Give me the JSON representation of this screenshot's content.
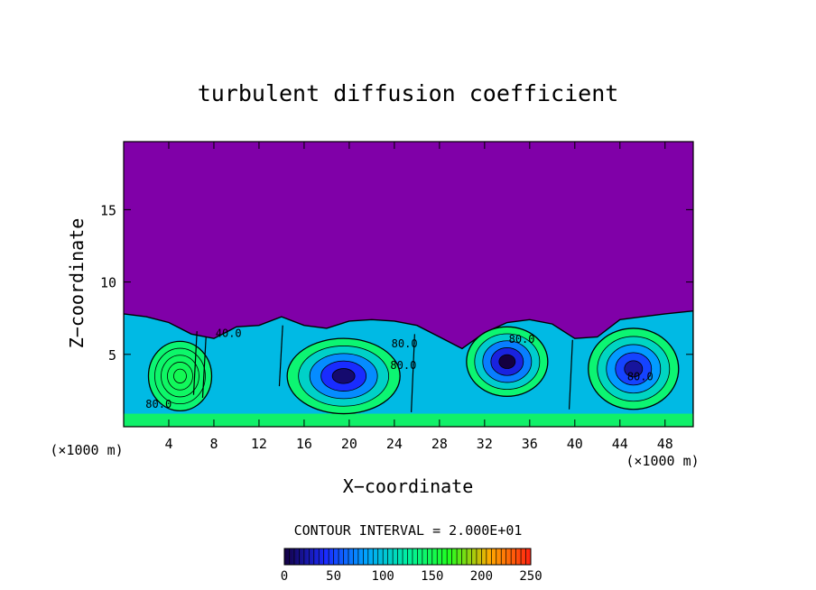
{
  "chart_data": {
    "type": "heatmap",
    "title": "turbulent diffusion coefficient",
    "xlabel": "X−coordinate",
    "ylabel": "Z−coordinate",
    "x_unit_left": "(×1000 m)",
    "x_unit_right": "(×1000 m)",
    "xlim": [
      0,
      50.5
    ],
    "ylim": [
      0,
      19.7
    ],
    "x_ticks": [
      4,
      8,
      12,
      16,
      20,
      24,
      28,
      32,
      36,
      40,
      44,
      48
    ],
    "y_ticks": [
      5,
      10,
      15
    ],
    "contour_labels": [
      {
        "text": "40.0",
        "x": 9.3,
        "y": 6.2
      },
      {
        "text": "80.0",
        "x": 3.1,
        "y": 1.3
      },
      {
        "text": "80.0",
        "x": 24.9,
        "y": 5.5
      },
      {
        "text": "80.0",
        "x": 24.8,
        "y": 4.0
      },
      {
        "text": "80.0",
        "x": 35.3,
        "y": 5.8
      },
      {
        "text": "80.0",
        "x": 45.8,
        "y": 3.2
      }
    ],
    "surface_top": [
      [
        0,
        7.8
      ],
      [
        2,
        7.6
      ],
      [
        4,
        7.2
      ],
      [
        6,
        6.4
      ],
      [
        8,
        6.1
      ],
      [
        10,
        6.9
      ],
      [
        12,
        7.0
      ],
      [
        14,
        7.6
      ],
      [
        16,
        7.0
      ],
      [
        18,
        6.8
      ],
      [
        20,
        7.3
      ],
      [
        22,
        7.4
      ],
      [
        24,
        7.3
      ],
      [
        26,
        7.0
      ],
      [
        28,
        6.2
      ],
      [
        30,
        5.4
      ],
      [
        32,
        6.5
      ],
      [
        34,
        7.2
      ],
      [
        36,
        7.4
      ],
      [
        38,
        7.1
      ],
      [
        40,
        6.1
      ],
      [
        42,
        6.2
      ],
      [
        44,
        7.4
      ],
      [
        46,
        7.6
      ],
      [
        48,
        7.8
      ],
      [
        50.5,
        8.0
      ]
    ],
    "eddies": [
      {
        "x": 5.0,
        "y": 3.5,
        "rx": 2.8,
        "ry": 2.4,
        "core": 150
      },
      {
        "x": 19.5,
        "y": 3.5,
        "rx": 5.0,
        "ry": 2.6,
        "core": 10
      },
      {
        "x": 34.0,
        "y": 4.5,
        "rx": 3.6,
        "ry": 2.4,
        "core": 0
      },
      {
        "x": 45.2,
        "y": 4.0,
        "rx": 4.0,
        "ry": 2.8,
        "core": 20
      }
    ],
    "upper_value": 230,
    "colorbar": {
      "label": "CONTOUR INTERVAL = 2.000E+01",
      "ticks": [
        "0",
        "50",
        "100",
        "150",
        "200",
        "250"
      ],
      "range": [
        0,
        250
      ],
      "colors": [
        "#140040",
        "#1a2aff",
        "#00a5ff",
        "#00f0a0",
        "#20ff20",
        "#ffaa00",
        "#ff2010"
      ]
    },
    "upper_color": "#8000a8"
  }
}
